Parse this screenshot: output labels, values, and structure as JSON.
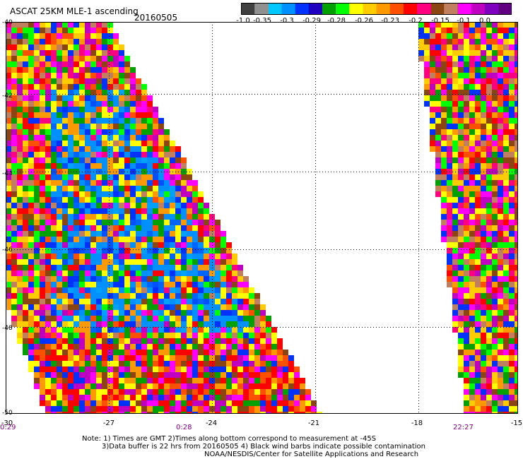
{
  "header": {
    "title": "ASCAT 25KM MLE-1 ascending",
    "date": "20160505"
  },
  "color_scale": {
    "colors": [
      "#404040",
      "#909090",
      "#00c8ff",
      "#0090ff",
      "#0032ff",
      "#2000c0",
      "#00a000",
      "#00ff00",
      "#ffff00",
      "#ffcc00",
      "#ff9900",
      "#ff5000",
      "#ff0000",
      "#ff0080",
      "#8b4513",
      "#c08060",
      "#ff00ff",
      "#c000c0",
      "#8000c0",
      "#600080"
    ],
    "labels": [
      "-1.0",
      "-0.35",
      "-0.3",
      "-0.29",
      "-0.28",
      "-0.26",
      "-0.23",
      "-0.2",
      "-0.15",
      "-0.1",
      "0.0"
    ]
  },
  "map": {
    "lat_labels": [
      "-40",
      "-42",
      "-44",
      "-46",
      "-48",
      "-50"
    ],
    "lon_labels": [
      "-30",
      "-27",
      "-24",
      "-21",
      "-18",
      "-15"
    ],
    "time_labels": [
      "0:29",
      "0:28",
      "22:27"
    ]
  },
  "notes": [
    "Note: 1) Times are GMT 2)Times along bottom correspond to measurement at -45S",
    "3)Data buffer is 22 hrs from 20160505 4) Black wind barbs indicate possible contamination",
    "NOAA/NESDIS/Center for Satellite Applications and Research"
  ]
}
